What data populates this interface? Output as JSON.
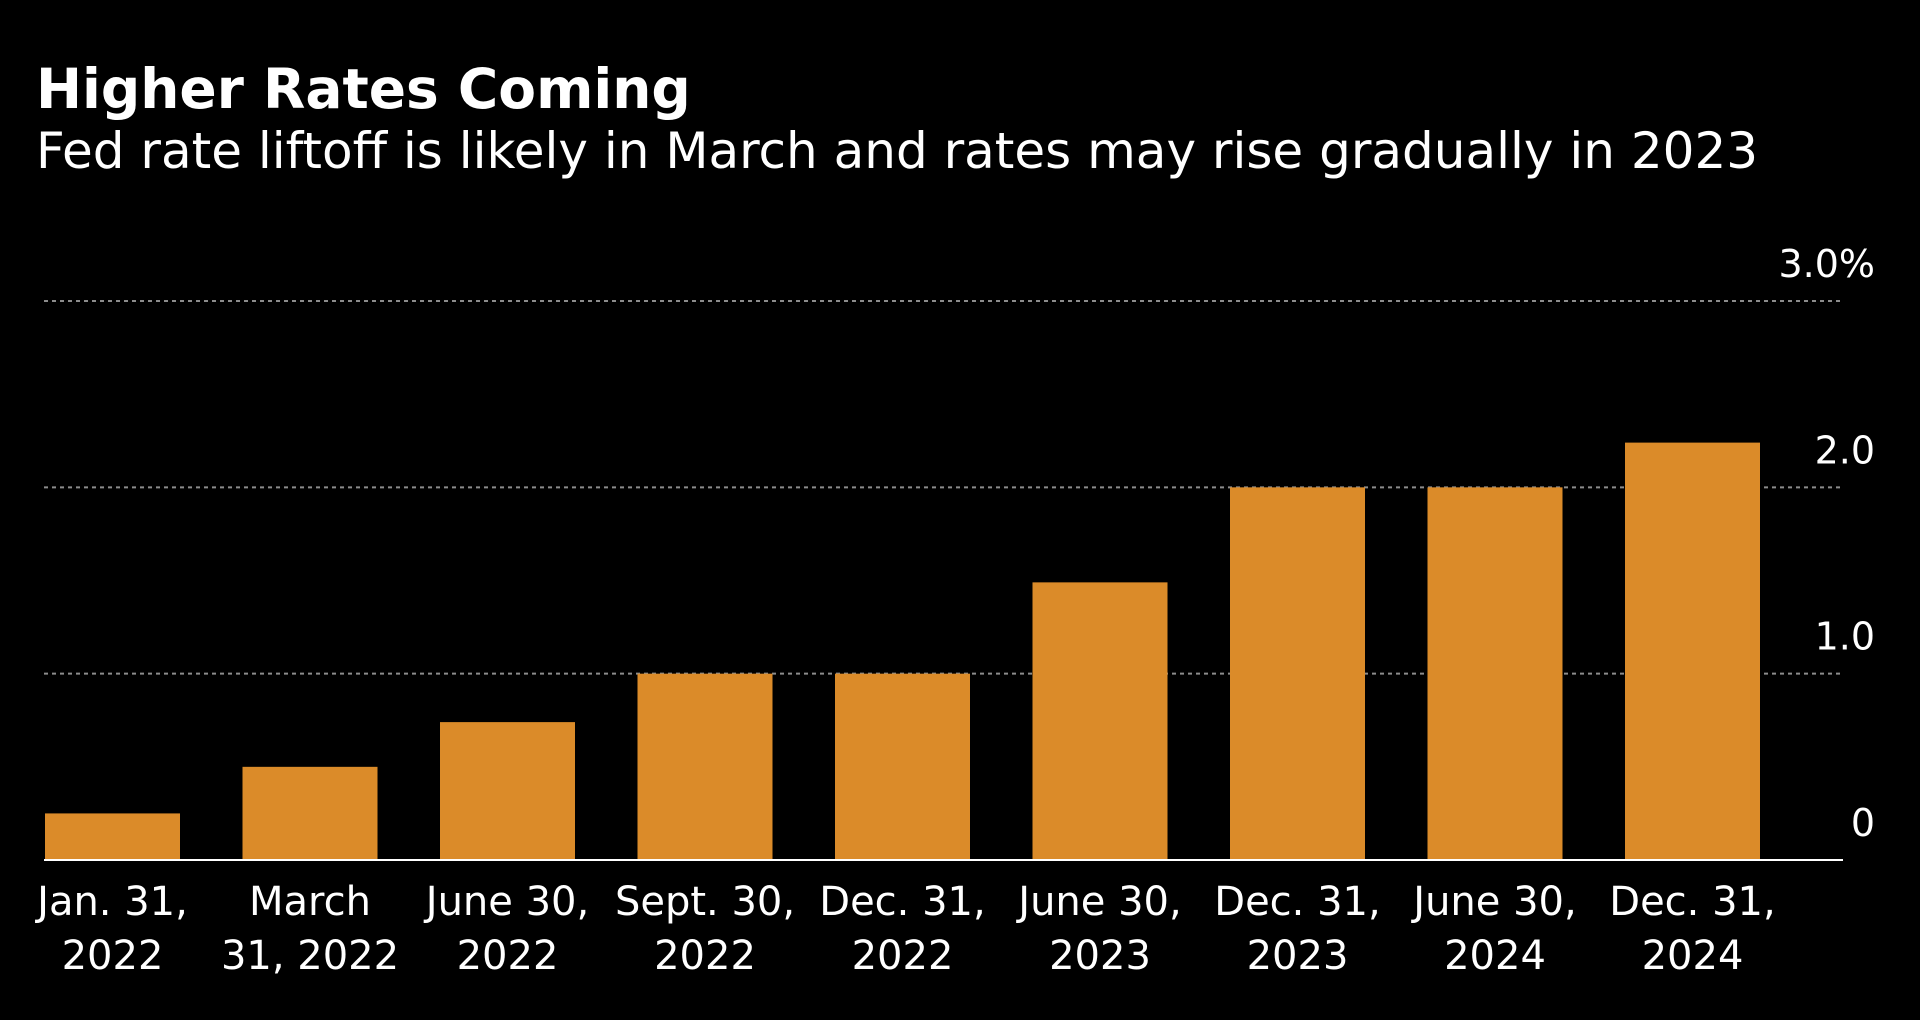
{
  "chart_data": {
    "type": "bar",
    "title": "Higher Rates Coming",
    "subtitle": "Fed rate liftoff is likely in March and rates may rise gradually in 2023",
    "categories": [
      [
        "Jan. 31,",
        "2022"
      ],
      [
        "March",
        "31, 2022"
      ],
      [
        "June 30,",
        "2022"
      ],
      [
        "Sept. 30,",
        "2022"
      ],
      [
        "Dec. 31,",
        "2022"
      ],
      [
        "June 30,",
        "2023"
      ],
      [
        "Dec. 31,",
        "2023"
      ],
      [
        "June 30,",
        "2024"
      ],
      [
        "Dec. 31,",
        "2024"
      ]
    ],
    "values": [
      0.25,
      0.5,
      0.74,
      1.0,
      1.0,
      1.49,
      2.0,
      2.0,
      2.24
    ],
    "ylim": [
      0,
      3.0
    ],
    "yticks": [
      {
        "value": 0,
        "label": "0"
      },
      {
        "value": 1.0,
        "label": "1.0"
      },
      {
        "value": 2.0,
        "label": "2.0"
      },
      {
        "value": 3.0,
        "label": "3.0%"
      }
    ],
    "y_axis_side": "right",
    "grid": true,
    "grid_style": "dotted",
    "bar_color": "#DB8B29",
    "grid_color": "#8c8c8c",
    "axis_line_color": "#ffffff",
    "text_color": "#ffffff",
    "background_color": "#000000"
  }
}
